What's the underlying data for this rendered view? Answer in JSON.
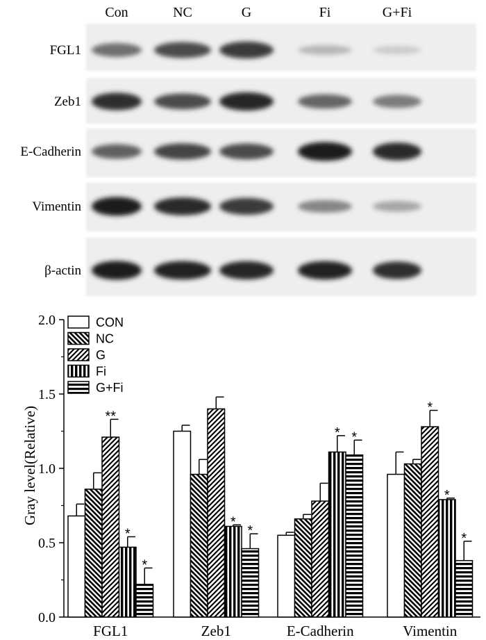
{
  "blot": {
    "lanes": [
      "Con",
      "NC",
      "G",
      "Fi",
      "G+Fi"
    ],
    "rows": [
      {
        "label": "FGL1",
        "intensity": [
          0.55,
          0.72,
          0.8,
          0.22,
          0.12
        ]
      },
      {
        "label": "Zeb1",
        "intensity": [
          0.85,
          0.72,
          0.9,
          0.6,
          0.5
        ]
      },
      {
        "label": "E-Cadherin",
        "intensity": [
          0.62,
          0.75,
          0.72,
          0.95,
          0.88
        ]
      },
      {
        "label": "Vimentin",
        "intensity": [
          0.95,
          0.88,
          0.8,
          0.45,
          0.3
        ]
      },
      {
        "label": "β-actin",
        "intensity": [
          0.95,
          0.92,
          0.9,
          0.92,
          0.85
        ]
      }
    ]
  },
  "chart_data": {
    "type": "bar",
    "ylabel": "Gray level(Relative)",
    "ylim": [
      0,
      2.0
    ],
    "yticks": [
      "0.0",
      "0.5",
      "1.0",
      "1.5",
      "2.0"
    ],
    "categories": [
      "FGL1",
      "Zeb1",
      "E-Cadherin",
      "Vimentin"
    ],
    "series": [
      {
        "name": "CON",
        "pattern": "empty",
        "values": [
          0.68,
          1.25,
          0.55,
          0.96
        ],
        "errors": [
          0.08,
          0.04,
          0.02,
          0.15
        ],
        "marks": [
          "",
          "",
          "",
          ""
        ]
      },
      {
        "name": "NC",
        "pattern": "diag-down",
        "values": [
          0.86,
          0.96,
          0.66,
          1.03
        ],
        "errors": [
          0.11,
          0.1,
          0.03,
          0.03
        ],
        "marks": [
          "",
          "",
          "",
          ""
        ]
      },
      {
        "name": "G",
        "pattern": "diag-up",
        "values": [
          1.21,
          1.4,
          0.78,
          1.28
        ],
        "errors": [
          0.12,
          0.08,
          0.12,
          0.11
        ],
        "marks": [
          "**",
          "",
          "",
          "*"
        ]
      },
      {
        "name": "Fi",
        "pattern": "vertical",
        "values": [
          0.47,
          0.61,
          1.11,
          0.79
        ],
        "errors": [
          0.07,
          0.01,
          0.11,
          0.01
        ],
        "marks": [
          "*",
          "*",
          "*",
          "*"
        ]
      },
      {
        "name": "G+Fi",
        "pattern": "horizontal",
        "values": [
          0.22,
          0.46,
          1.09,
          0.38
        ],
        "errors": [
          0.11,
          0.1,
          0.1,
          0.13
        ],
        "marks": [
          "*",
          "*",
          "*",
          "*"
        ]
      }
    ],
    "legend_position": "top-left"
  }
}
